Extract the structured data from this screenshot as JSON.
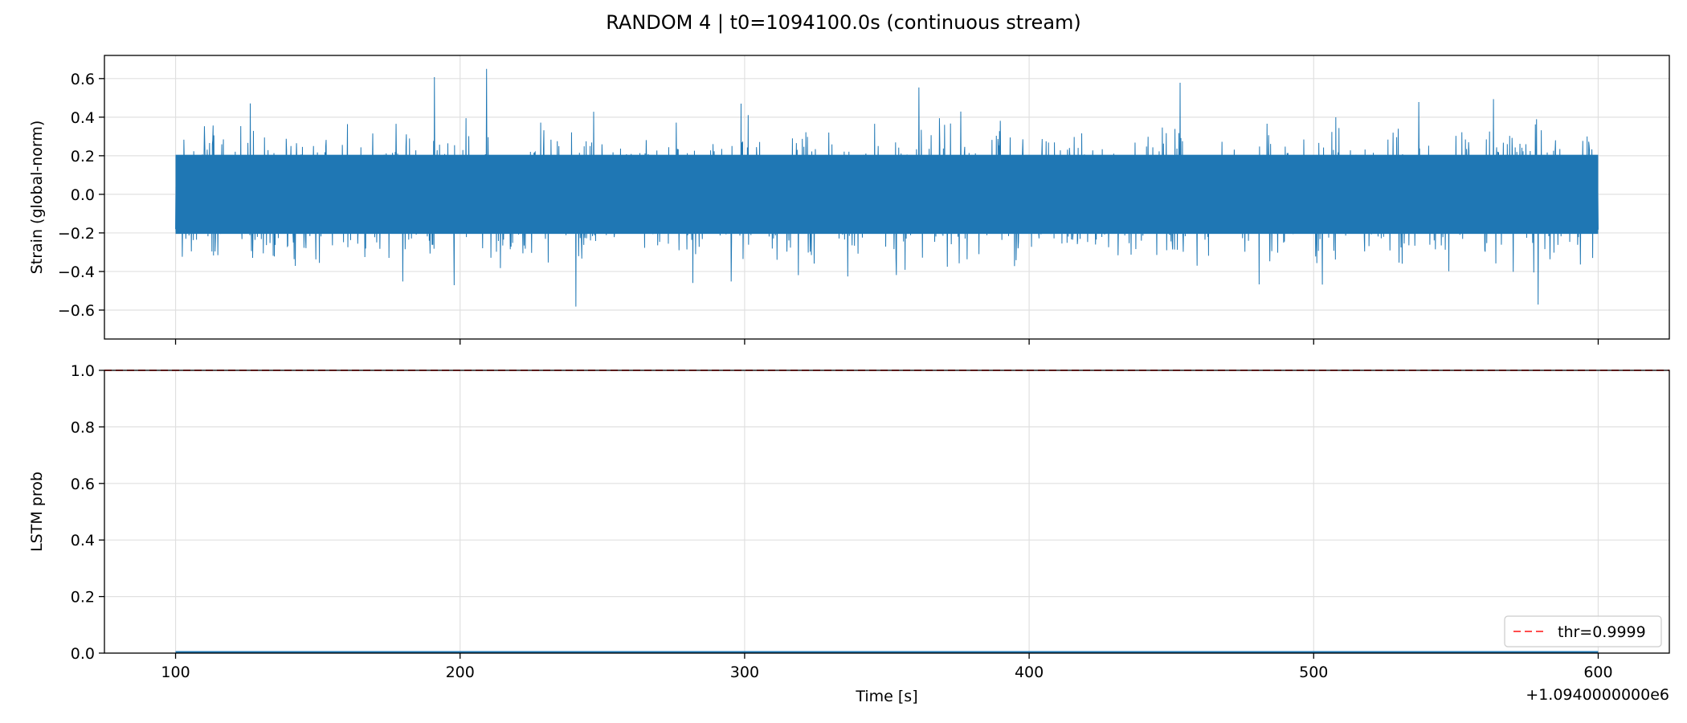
{
  "chart_data": {
    "title": "RANDOM 4 | t0=1094100.0s (continuous stream)",
    "shared_x": {
      "xlabel": "Time [s]",
      "xlim": [
        75,
        625
      ],
      "xticks": [
        100,
        200,
        300,
        400,
        500,
        600
      ],
      "xtick_labels": [
        "100",
        "200",
        "300",
        "400",
        "500",
        "600"
      ],
      "offset_text": "+1.0940000000e6"
    },
    "panels": [
      {
        "type": "line",
        "ylabel": "Strain (global-norm)",
        "ylim": [
          -0.75,
          0.72
        ],
        "yticks": [
          -0.6,
          -0.4,
          -0.2,
          0.0,
          0.2,
          0.4,
          0.6
        ],
        "ytick_labels": [
          "−0.6",
          "−0.4",
          "−0.2",
          "0.0",
          "0.2",
          "0.4",
          "0.6"
        ],
        "grid": true,
        "series": [
          {
            "color": "#1f77b4",
            "x_range": [
              100,
              600
            ],
            "envelope_typical": 0.25,
            "max": 0.65,
            "min": -0.69
          }
        ]
      },
      {
        "type": "line",
        "ylabel": "LSTM prob",
        "ylim": [
          0.0,
          1.0
        ],
        "yticks": [
          0.0,
          0.2,
          0.4,
          0.6,
          0.8,
          1.0
        ],
        "ytick_labels": [
          "0.0",
          "0.2",
          "0.4",
          "0.6",
          "0.8",
          "1.0"
        ],
        "grid": true,
        "legend_position": "lower-right",
        "series": [
          {
            "color": "#1f77b4",
            "x_range": [
              100,
              600
            ],
            "value": 0.003
          }
        ],
        "threshold": {
          "label": "thr=0.9999",
          "value": 0.9999,
          "color": "#ff4d4d",
          "style": "dashed"
        }
      }
    ]
  }
}
